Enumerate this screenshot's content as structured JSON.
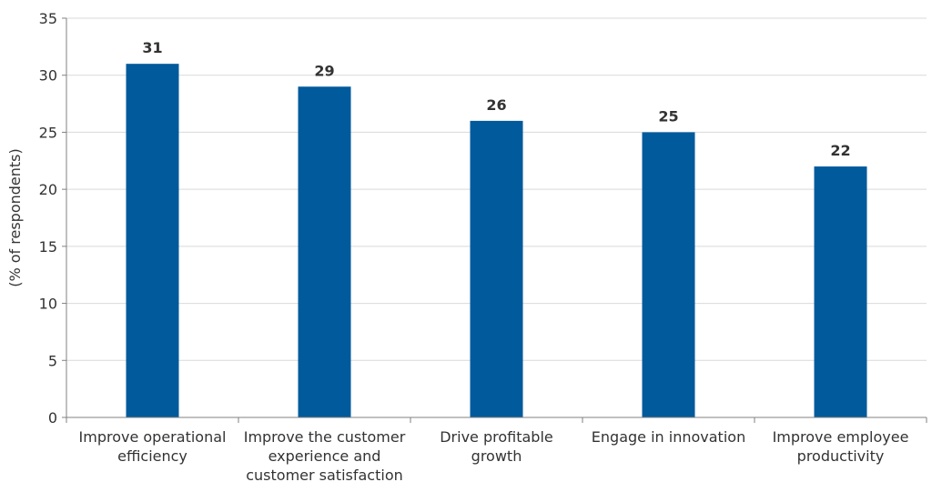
{
  "chart_data": {
    "type": "bar",
    "categories": [
      [
        "Improve operational",
        "efficiency"
      ],
      [
        "Improve the customer",
        "experience and",
        "customer satisfaction"
      ],
      [
        "Drive profitable",
        "growth"
      ],
      [
        "Engage in innovation"
      ],
      [
        "Improve employee",
        "productivity"
      ]
    ],
    "values": [
      31,
      29,
      26,
      25,
      22
    ],
    "title": "",
    "xlabel": "",
    "ylabel": "(% of respondents)",
    "ylim": [
      0,
      35
    ],
    "yticks": [
      0,
      5,
      10,
      15,
      20,
      25,
      30,
      35
    ],
    "grid": true,
    "colors": {
      "bar": "#005a9c",
      "grid": "#d9d9d9",
      "axis": "#808080"
    }
  }
}
